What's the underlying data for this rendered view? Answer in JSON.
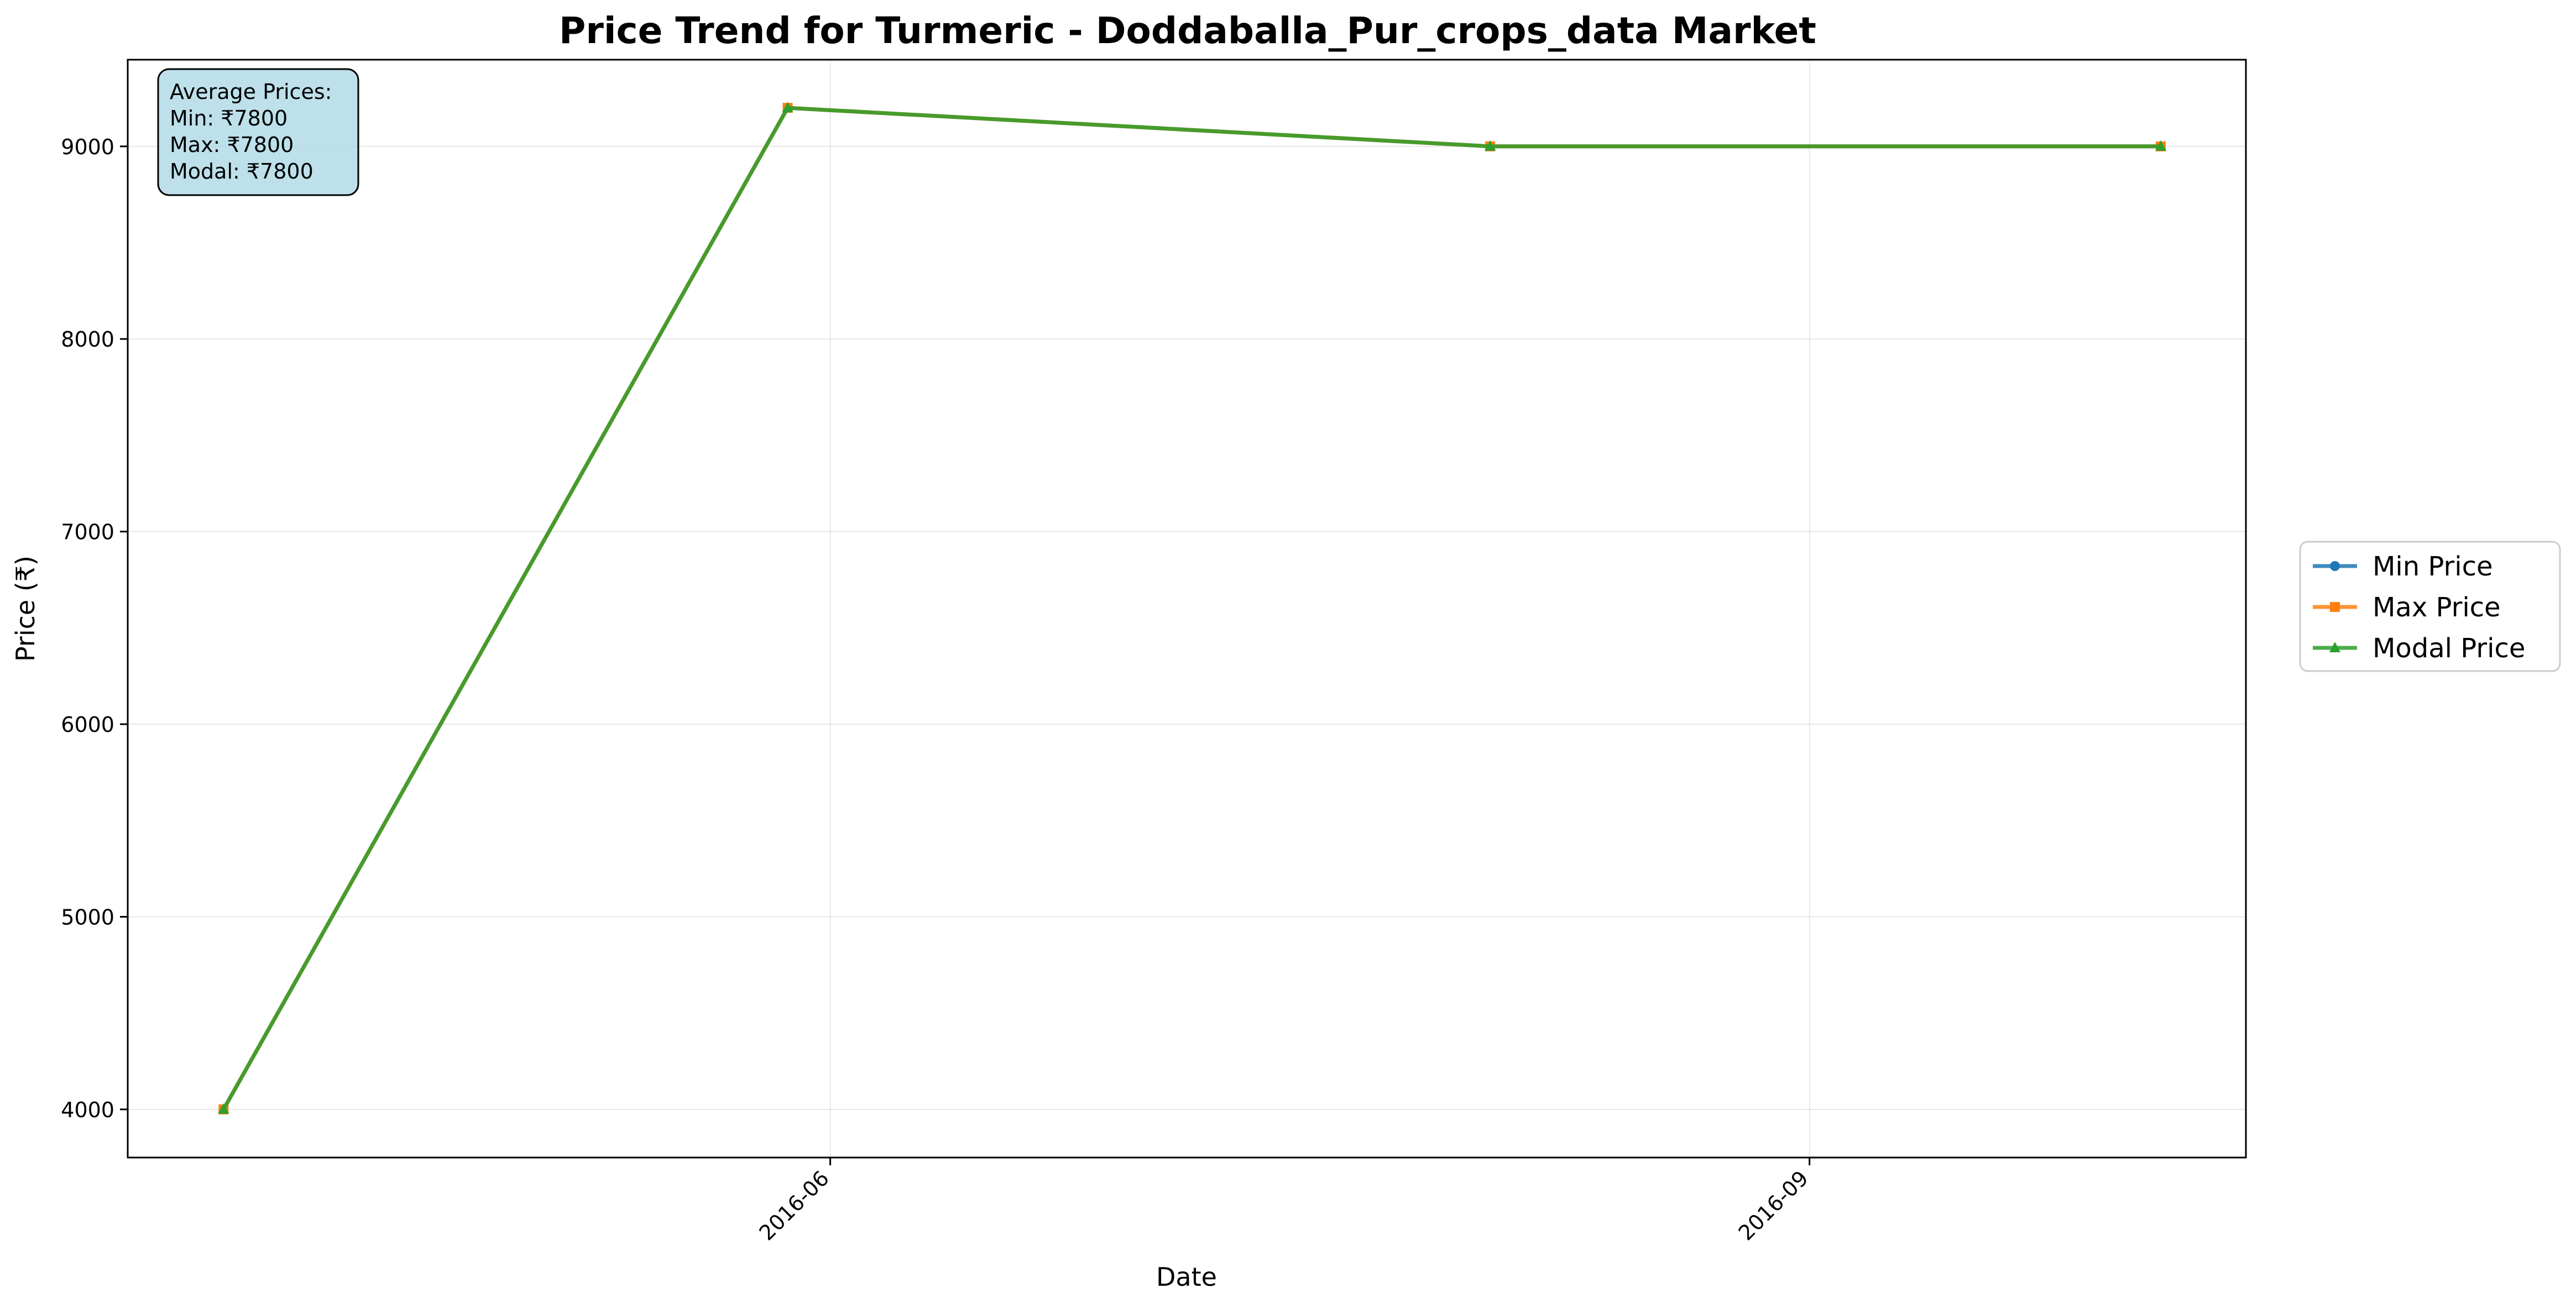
{
  "chart_data": {
    "type": "line",
    "title": "Price Trend for Turmeric - Doddaballa_Pur_crops_data Market",
    "xlabel": "Date",
    "ylabel": "Price (₹)",
    "x": [
      "2016-04-05",
      "2016-05-28",
      "2016-08-02",
      "2016-10-04"
    ],
    "x_ticks": [
      {
        "date": "2016-06-01",
        "label": "2016-06"
      },
      {
        "date": "2016-09-01",
        "label": "2016-09"
      }
    ],
    "xlim": [
      "2016-03-27",
      "2016-10-12"
    ],
    "ylim": [
      3750,
      9450
    ],
    "y_ticks": [
      4000,
      5000,
      6000,
      7000,
      8000,
      9000
    ],
    "grid": true,
    "legend_position": "right-outside",
    "series": [
      {
        "name": "Min Price",
        "color": "#1f77b4",
        "marker": "circle",
        "values": [
          4000,
          9200,
          9000,
          9000
        ]
      },
      {
        "name": "Max Price",
        "color": "#ff7f0e",
        "marker": "square",
        "values": [
          4000,
          9200,
          9000,
          9000
        ]
      },
      {
        "name": "Modal Price",
        "color": "#2ca02c",
        "marker": "triangle",
        "values": [
          4000,
          9200,
          9000,
          9000
        ]
      }
    ],
    "annotation": {
      "lines": [
        "Average Prices:",
        "Min: ₹7800",
        "Max: ₹7800",
        "Modal: ₹7800"
      ],
      "position": "top-left",
      "background": "#add8e6"
    }
  }
}
